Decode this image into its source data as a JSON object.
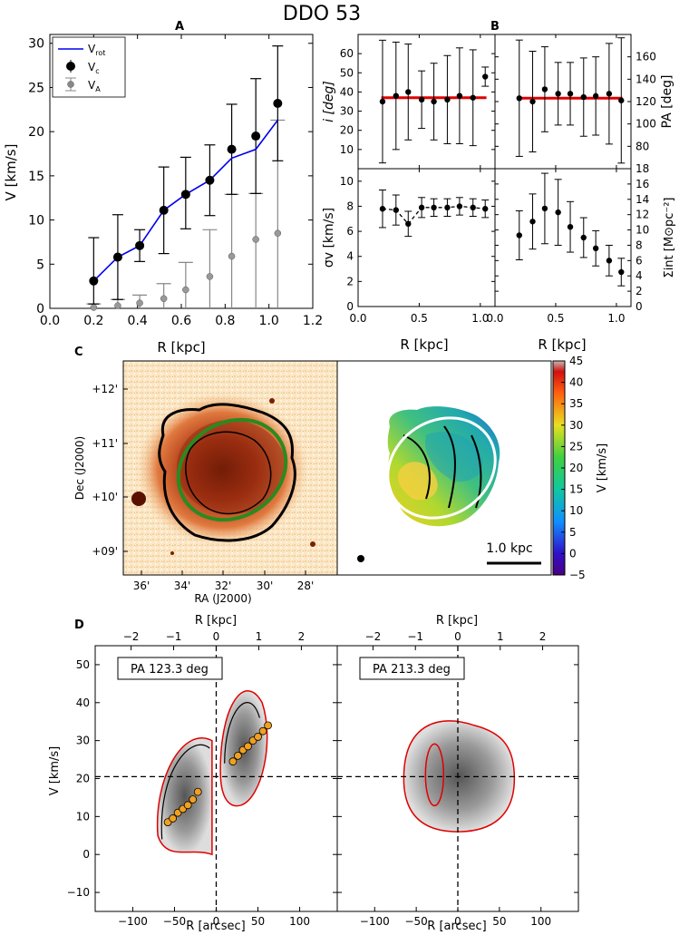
{
  "figure": {
    "title": "DDO 53"
  },
  "panel_labels": {
    "a": "A",
    "b": "B",
    "c": "C",
    "d": "D"
  },
  "chart_data": [
    {
      "id": "A",
      "type": "line",
      "title": "A",
      "xlabel": "R [kpc]",
      "ylabel": "V [km/s]",
      "xlim": [
        0.0,
        1.2
      ],
      "ylim": [
        0,
        31
      ],
      "xticks": [
        0.0,
        0.2,
        0.4,
        0.6,
        0.8,
        1.0,
        1.2
      ],
      "xtick_labels": [
        "0.0",
        "0.2",
        "0.4",
        "0.6",
        "0.8",
        "1.0",
        "1.2"
      ],
      "yticks": [
        0,
        5,
        10,
        15,
        20,
        25,
        30
      ],
      "ytick_labels": [
        "0",
        "5",
        "10",
        "15",
        "20",
        "25",
        "30"
      ],
      "legend": {
        "position": "top-left",
        "entries": [
          {
            "label": "V",
            "sub": "rot",
            "style": "line",
            "color": "#0000ee"
          },
          {
            "label": "V",
            "sub": "c",
            "style": "errorbar-point",
            "color": "#000000"
          },
          {
            "label": "V",
            "sub": "A",
            "style": "errorbar-point",
            "color": "#888888"
          }
        ]
      },
      "series": [
        {
          "name": "V_rot",
          "x": [
            0.2,
            0.31,
            0.41,
            0.52,
            0.62,
            0.73,
            0.83,
            0.94,
            1.04
          ],
          "y": [
            3.1,
            5.8,
            7.1,
            11.1,
            12.9,
            14.5,
            17.0,
            18.0,
            21.3
          ]
        },
        {
          "name": "V_c",
          "x": [
            0.2,
            0.31,
            0.41,
            0.52,
            0.62,
            0.73,
            0.83,
            0.94,
            1.04
          ],
          "y": [
            3.1,
            5.8,
            7.1,
            11.1,
            12.9,
            14.5,
            18.0,
            19.5,
            23.2
          ],
          "err_low": [
            2.6,
            4.8,
            1.8,
            4.9,
            3.9,
            4.0,
            5.1,
            6.5,
            6.5
          ],
          "err_high": [
            4.9,
            4.8,
            1.8,
            4.9,
            4.2,
            4.0,
            5.1,
            6.5,
            6.5
          ]
        },
        {
          "name": "V_A",
          "x": [
            0.2,
            0.31,
            0.41,
            0.52,
            0.62,
            0.73,
            0.83,
            0.94,
            1.04
          ],
          "y": [
            0.1,
            0.3,
            0.6,
            1.1,
            2.1,
            3.6,
            5.9,
            7.8,
            8.5
          ],
          "err_low": [
            0.1,
            0.3,
            0.6,
            1.1,
            2.1,
            3.6,
            5.9,
            7.8,
            8.5
          ],
          "err_high": [
            0.4,
            0.7,
            0.9,
            1.7,
            3.1,
            5.3,
            7.0,
            5.2,
            12.8
          ]
        }
      ]
    },
    {
      "id": "B-incl",
      "type": "scatter",
      "ylabel": "i [deg]",
      "xlim": [
        0.0,
        1.12
      ],
      "ylim": [
        0,
        70
      ],
      "yticks": [
        10,
        20,
        30,
        40,
        50,
        60
      ],
      "ytick_labels": [
        "10",
        "20",
        "30",
        "40",
        "50",
        "60"
      ],
      "fit_value": 37,
      "series": [
        {
          "name": "i",
          "x": [
            0.2,
            0.31,
            0.41,
            0.52,
            0.62,
            0.73,
            0.83,
            0.94,
            1.04
          ],
          "y": [
            35,
            38,
            40,
            36,
            35,
            36,
            38,
            37,
            48
          ],
          "err": [
            32,
            28,
            25,
            15,
            20,
            23,
            25,
            25,
            5
          ]
        }
      ]
    },
    {
      "id": "B-pa",
      "type": "scatter",
      "ylabel": "PA [deg]",
      "xlim": [
        0.0,
        1.12
      ],
      "ylim": [
        60,
        180
      ],
      "yticks": [
        80,
        100,
        120,
        140,
        160
      ],
      "ytick_labels": [
        "80",
        "100",
        "120",
        "140",
        "160"
      ],
      "fit_value": 123,
      "series": [
        {
          "name": "PA",
          "x": [
            0.2,
            0.31,
            0.41,
            0.52,
            0.62,
            0.73,
            0.83,
            0.94,
            1.04
          ],
          "y": [
            123,
            120,
            131,
            127,
            127,
            124,
            125,
            127,
            121
          ],
          "err": [
            52,
            45,
            38,
            28,
            28,
            35,
            35,
            45,
            56
          ]
        }
      ]
    },
    {
      "id": "B-sigma",
      "type": "scatter",
      "ylabel": "σv [km/s]",
      "xlabel": "R [kpc]",
      "xlim": [
        0.0,
        1.12
      ],
      "ylim": [
        0,
        11
      ],
      "xticks": [
        0.0,
        0.5,
        1.0
      ],
      "xtick_labels": [
        "0.0",
        "0.5",
        "1.0"
      ],
      "yticks": [
        0,
        2,
        4,
        6,
        8,
        10
      ],
      "ytick_labels": [
        "0",
        "2",
        "4",
        "6",
        "8",
        "10"
      ],
      "series": [
        {
          "name": "sigma_v",
          "x": [
            0.2,
            0.31,
            0.41,
            0.52,
            0.62,
            0.73,
            0.83,
            0.94,
            1.04
          ],
          "y": [
            7.8,
            7.7,
            6.6,
            7.9,
            7.9,
            7.9,
            8.0,
            7.9,
            7.8
          ],
          "err": [
            1.5,
            1.2,
            1.0,
            0.8,
            0.7,
            0.7,
            0.7,
            0.7,
            0.7
          ]
        }
      ]
    },
    {
      "id": "B-sigma-int",
      "type": "scatter",
      "ylabel": "Σint [M⊙pc⁻²]",
      "xlabel": "R [kpc]",
      "xlim": [
        0.0,
        1.12
      ],
      "ylim": [
        0,
        18
      ],
      "xticks": [
        0.0,
        0.5,
        1.0
      ],
      "xtick_labels": [
        "0.0",
        "0.5",
        "1.0"
      ],
      "yticks": [
        0,
        2,
        4,
        6,
        8,
        10,
        12,
        14,
        16
      ],
      "ytick_labels": [
        "0",
        "2",
        "4",
        "6",
        "8",
        "10",
        "12",
        "14",
        "16"
      ],
      "series": [
        {
          "name": "Sigma_int",
          "x": [
            0.2,
            0.31,
            0.41,
            0.52,
            0.62,
            0.73,
            0.83,
            0.94,
            1.04
          ],
          "y": [
            9.3,
            11.1,
            12.8,
            12.3,
            10.4,
            9.0,
            7.6,
            6.0,
            4.5
          ],
          "err": [
            3.2,
            3.6,
            4.6,
            4.3,
            3.3,
            2.6,
            2.3,
            2.0,
            1.8
          ]
        }
      ]
    },
    {
      "id": "C",
      "type": "heatmap",
      "xlabel": "RA (J2000)",
      "ylabel": "Dec (J2000)",
      "xtick_labels": [
        "36'",
        "34'",
        "32'",
        "30'",
        "28'"
      ],
      "ytick_labels": [
        "+09'",
        "+10'",
        "+11'",
        "+12'"
      ],
      "colorbar_label": "V [km/s]",
      "colorbar_range": [
        -5,
        45
      ],
      "colorbar_ticks": [
        -5,
        0,
        5,
        10,
        15,
        20,
        25,
        30,
        35,
        40,
        45
      ],
      "scalebar_label": "1.0 kpc"
    },
    {
      "id": "D-left",
      "type": "heatmap",
      "annotation": "PA 123.3 deg",
      "xlabel": "R [arcsec]",
      "ylabel": "V [km/s]",
      "top_xlabel": "R [kpc]",
      "xlim": [
        -145,
        145
      ],
      "ylim": [
        -15,
        55
      ],
      "xticks": [
        -100,
        -50,
        0,
        50,
        100
      ],
      "xtick_labels": [
        "−100",
        "−50",
        "0",
        "50",
        "100"
      ],
      "yticks": [
        -10,
        0,
        10,
        20,
        30,
        40,
        50
      ],
      "ytick_labels": [
        "−10",
        "0",
        "10",
        "20",
        "30",
        "40",
        "50"
      ],
      "top_ticks": [
        -2,
        -1,
        0,
        1,
        2
      ],
      "top_tick_labels": [
        "−2",
        "−1",
        "0",
        "1",
        "2"
      ],
      "systemic_velocity": 20.5,
      "model_points": {
        "x": [
          -58,
          -52,
          -46,
          -40,
          -34,
          -28,
          -22,
          20,
          26,
          32,
          38,
          44,
          50,
          56,
          62
        ],
        "y": [
          8.5,
          9.5,
          11,
          12,
          13,
          14.5,
          16.5,
          24.5,
          26,
          27.5,
          28.5,
          30,
          31,
          32.5,
          34
        ]
      }
    },
    {
      "id": "D-right",
      "type": "heatmap",
      "annotation": "PA 213.3 deg",
      "xlabel": "R [arcsec]",
      "top_xlabel": "R [kpc]",
      "xlim": [
        -145,
        145
      ],
      "ylim": [
        -15,
        55
      ],
      "xticks": [
        -100,
        -50,
        0,
        50,
        100
      ],
      "xtick_labels": [
        "−100",
        "−50",
        "0",
        "50",
        "100"
      ],
      "top_ticks": [
        -2,
        -1,
        0,
        1,
        2
      ],
      "top_tick_labels": [
        "−2",
        "−1",
        "0",
        "1",
        "2"
      ],
      "systemic_velocity": 20.5
    }
  ]
}
